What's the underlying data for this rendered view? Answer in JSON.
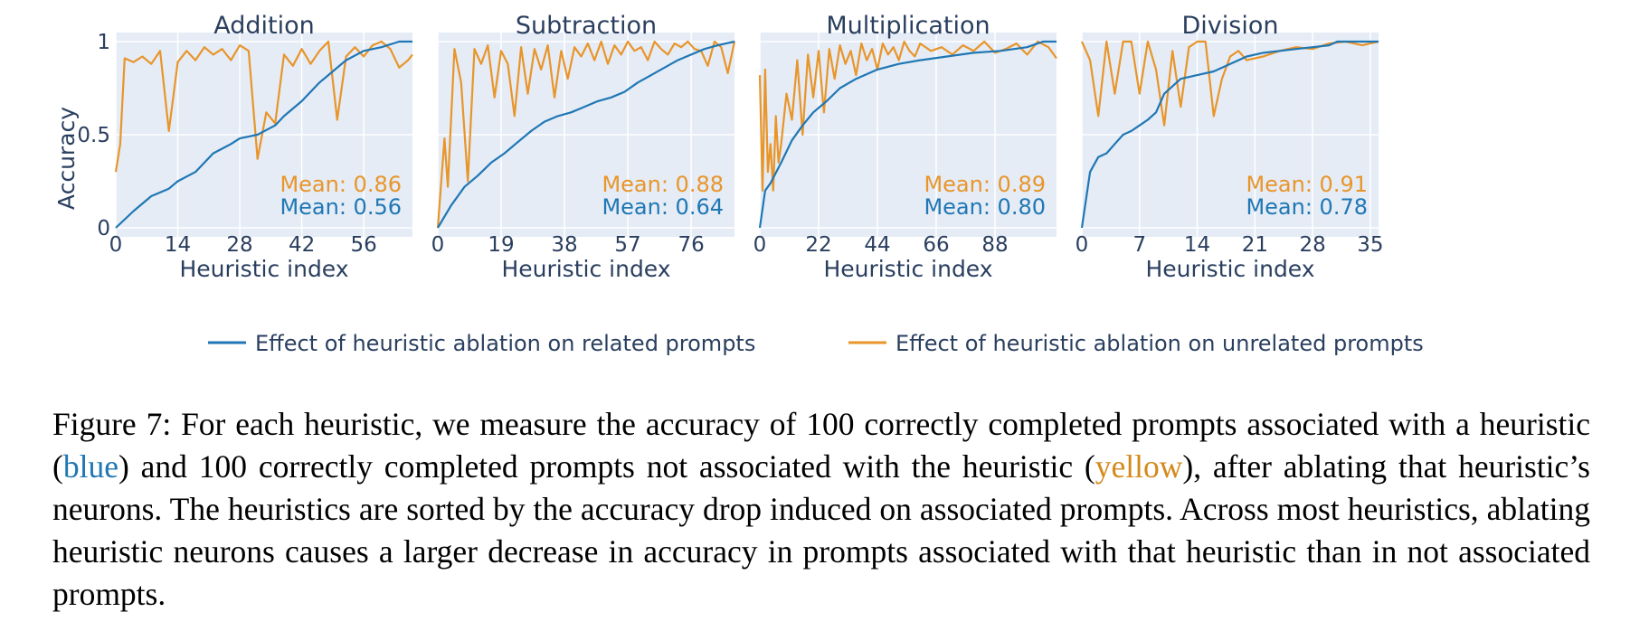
{
  "colors": {
    "related": "#1f77b4",
    "unrelated": "#e8952a",
    "plot_bg": "#e5ecf6",
    "grid": "#ffffff",
    "text": "#2a3f5f"
  },
  "legend": {
    "related_label": "Effect of heuristic ablation on related prompts",
    "unrelated_label": "Effect of heuristic ablation on unrelated prompts"
  },
  "y_axis": {
    "title": "Accuracy",
    "ticks": [
      "0",
      "0.5",
      "1"
    ]
  },
  "chart_data": [
    {
      "type": "line",
      "title": "Addition",
      "xlabel": "Heuristic index",
      "ylabel": "Accuracy",
      "xlim": [
        0,
        67
      ],
      "ylim": [
        0,
        1
      ],
      "xticks": [
        0,
        14,
        28,
        42,
        56
      ],
      "yticks": [
        0,
        0.5,
        1
      ],
      "grid": true,
      "mean_unrelated": "Mean: 0.86",
      "mean_related": "Mean: 0.56",
      "series": [
        {
          "name": "Effect of heuristic ablation on related prompts",
          "key": "related",
          "x": [
            0,
            4,
            8,
            12,
            14,
            18,
            22,
            26,
            28,
            32,
            36,
            38,
            42,
            46,
            48,
            52,
            56,
            60,
            64,
            67
          ],
          "y": [
            0.0,
            0.09,
            0.17,
            0.21,
            0.25,
            0.3,
            0.4,
            0.45,
            0.48,
            0.5,
            0.55,
            0.6,
            0.68,
            0.78,
            0.82,
            0.9,
            0.95,
            0.97,
            1.0,
            1.0
          ]
        },
        {
          "name": "Effect of heuristic ablation on unrelated prompts",
          "key": "unrelated",
          "x": [
            0,
            1,
            2,
            4,
            6,
            8,
            10,
            12,
            14,
            16,
            18,
            20,
            22,
            24,
            26,
            28,
            30,
            32,
            34,
            36,
            38,
            40,
            42,
            44,
            46,
            48,
            50,
            52,
            54,
            56,
            58,
            60,
            62,
            64,
            66,
            67
          ],
          "y": [
            0.3,
            0.45,
            0.91,
            0.89,
            0.92,
            0.88,
            0.95,
            0.52,
            0.89,
            0.95,
            0.9,
            0.97,
            0.93,
            0.96,
            0.9,
            0.98,
            0.95,
            0.37,
            0.62,
            0.56,
            0.93,
            0.87,
            0.96,
            0.88,
            0.95,
            1.0,
            0.58,
            0.92,
            0.97,
            0.92,
            0.98,
            1.0,
            0.96,
            0.86,
            0.9,
            0.93
          ]
        }
      ]
    },
    {
      "type": "line",
      "title": "Subtraction",
      "xlabel": "Heuristic index",
      "ylabel": "Accuracy",
      "xlim": [
        0,
        89
      ],
      "ylim": [
        0,
        1
      ],
      "xticks": [
        0,
        19,
        38,
        57,
        76
      ],
      "yticks": [
        0,
        0.5,
        1
      ],
      "grid": true,
      "mean_unrelated": "Mean: 0.88",
      "mean_related": "Mean: 0.64",
      "series": [
        {
          "name": "Effect of heuristic ablation on related prompts",
          "key": "related",
          "x": [
            0,
            4,
            8,
            12,
            16,
            20,
            24,
            28,
            32,
            36,
            40,
            44,
            48,
            52,
            56,
            60,
            64,
            68,
            72,
            76,
            80,
            84,
            89
          ],
          "y": [
            0.0,
            0.12,
            0.22,
            0.28,
            0.35,
            0.4,
            0.46,
            0.52,
            0.57,
            0.6,
            0.62,
            0.65,
            0.68,
            0.7,
            0.73,
            0.78,
            0.82,
            0.86,
            0.9,
            0.93,
            0.96,
            0.98,
            1.0
          ]
        },
        {
          "name": "Effect of heuristic ablation on unrelated prompts",
          "key": "unrelated",
          "x": [
            0,
            2,
            3,
            5,
            7,
            9,
            11,
            13,
            15,
            17,
            19,
            21,
            23,
            25,
            27,
            29,
            31,
            33,
            35,
            37,
            39,
            41,
            43,
            45,
            47,
            49,
            51,
            53,
            55,
            57,
            59,
            61,
            63,
            65,
            67,
            69,
            71,
            73,
            75,
            77,
            79,
            81,
            83,
            85,
            87,
            89
          ],
          "y": [
            0.0,
            0.48,
            0.22,
            0.96,
            0.78,
            0.25,
            0.96,
            0.88,
            0.98,
            0.7,
            0.95,
            0.88,
            0.6,
            0.97,
            0.72,
            0.96,
            0.85,
            0.98,
            0.7,
            0.95,
            0.8,
            0.97,
            0.92,
            0.99,
            0.9,
            1.0,
            0.88,
            0.98,
            0.93,
            1.0,
            0.95,
            0.97,
            0.9,
            1.0,
            0.96,
            0.93,
            0.99,
            0.97,
            1.0,
            0.96,
            0.95,
            0.87,
            1.0,
            0.97,
            0.83,
            1.0
          ]
        }
      ]
    },
    {
      "type": "line",
      "title": "Multiplication",
      "xlabel": "Heuristic index",
      "ylabel": "Accuracy",
      "xlim": [
        0,
        111
      ],
      "ylim": [
        0,
        1
      ],
      "xticks": [
        0,
        22,
        44,
        66,
        88
      ],
      "yticks": [
        0,
        0.5,
        1
      ],
      "grid": true,
      "mean_unrelated": "Mean: 0.89",
      "mean_related": "Mean: 0.80",
      "series": [
        {
          "name": "Effect of heuristic ablation on related prompts",
          "key": "related",
          "x": [
            0,
            2,
            4,
            8,
            12,
            16,
            20,
            25,
            30,
            36,
            44,
            52,
            60,
            70,
            80,
            90,
            100,
            106,
            111
          ],
          "y": [
            0.0,
            0.2,
            0.24,
            0.35,
            0.47,
            0.55,
            0.62,
            0.68,
            0.75,
            0.8,
            0.85,
            0.88,
            0.9,
            0.92,
            0.94,
            0.95,
            0.97,
            1.0,
            1.0
          ]
        },
        {
          "name": "Effect of heuristic ablation on unrelated prompts",
          "key": "unrelated",
          "x": [
            0,
            1,
            2,
            3,
            4,
            5,
            6,
            7,
            8,
            10,
            12,
            14,
            16,
            18,
            20,
            22,
            24,
            26,
            28,
            30,
            32,
            34,
            36,
            38,
            40,
            42,
            44,
            46,
            48,
            50,
            52,
            54,
            56,
            58,
            60,
            64,
            68,
            72,
            76,
            80,
            84,
            88,
            92,
            96,
            100,
            104,
            108,
            111
          ],
          "y": [
            0.82,
            0.2,
            0.85,
            0.3,
            0.45,
            0.2,
            0.6,
            0.35,
            0.45,
            0.72,
            0.58,
            0.9,
            0.5,
            0.93,
            0.7,
            0.95,
            0.62,
            0.96,
            0.8,
            0.98,
            0.88,
            0.95,
            0.82,
            0.99,
            0.9,
            0.96,
            0.85,
            0.99,
            0.93,
            0.97,
            0.9,
            1.0,
            0.95,
            0.92,
            0.99,
            0.95,
            0.97,
            0.93,
            0.98,
            0.95,
            1.0,
            0.94,
            0.96,
            0.99,
            0.93,
            1.0,
            0.97,
            0.91
          ]
        }
      ]
    },
    {
      "type": "line",
      "title": "Division",
      "xlabel": "Heuristic index",
      "ylabel": "Accuracy",
      "xlim": [
        0,
        36
      ],
      "ylim": [
        0,
        1
      ],
      "xticks": [
        0,
        7,
        14,
        21,
        28,
        35
      ],
      "yticks": [
        0,
        0.5,
        1
      ],
      "grid": true,
      "mean_unrelated": "Mean: 0.91",
      "mean_related": "Mean: 0.78",
      "series": [
        {
          "name": "Effect of heuristic ablation on related prompts",
          "key": "related",
          "x": [
            0,
            1,
            2,
            3,
            4,
            5,
            6,
            7,
            8,
            9,
            10,
            11,
            12,
            14,
            16,
            18,
            20,
            22,
            24,
            26,
            28,
            30,
            31,
            32,
            34,
            36
          ],
          "y": [
            0.0,
            0.3,
            0.38,
            0.4,
            0.45,
            0.5,
            0.52,
            0.55,
            0.58,
            0.62,
            0.72,
            0.76,
            0.8,
            0.82,
            0.84,
            0.88,
            0.92,
            0.94,
            0.95,
            0.96,
            0.97,
            0.98,
            1.0,
            1.0,
            1.0,
            1.0
          ]
        },
        {
          "name": "Effect of heuristic ablation on unrelated prompts",
          "key": "unrelated",
          "x": [
            0,
            1,
            2,
            3,
            4,
            5,
            6,
            7,
            8,
            9,
            10,
            11,
            12,
            13,
            14,
            15,
            16,
            17,
            18,
            19,
            20,
            22,
            24,
            26,
            28,
            30,
            32,
            34,
            36
          ],
          "y": [
            1.0,
            0.9,
            0.6,
            1.0,
            0.72,
            1.0,
            1.0,
            0.72,
            1.0,
            0.85,
            0.55,
            0.95,
            0.65,
            0.97,
            1.0,
            1.0,
            0.6,
            0.8,
            0.92,
            0.95,
            0.9,
            0.92,
            0.95,
            0.97,
            0.96,
            0.99,
            1.0,
            0.98,
            1.0
          ]
        }
      ]
    }
  ],
  "caption": {
    "label": "Figure 7:",
    "part1": " For each heuristic, we measure the accuracy of 100 correctly completed prompts associated with a heuristic (",
    "blue_word": "blue",
    "part2": ") and 100 correctly completed prompts not associated with the heuristic (",
    "yellow_word": "yellow",
    "part3": "), after ablating that heuristic’s neurons. The heuristics are sorted by the accuracy drop induced on associated prompts.  Across most heuristics, ablating heuristic neurons causes a larger decrease in accuracy in prompts associated with that heuristic than in not associated prompts."
  }
}
